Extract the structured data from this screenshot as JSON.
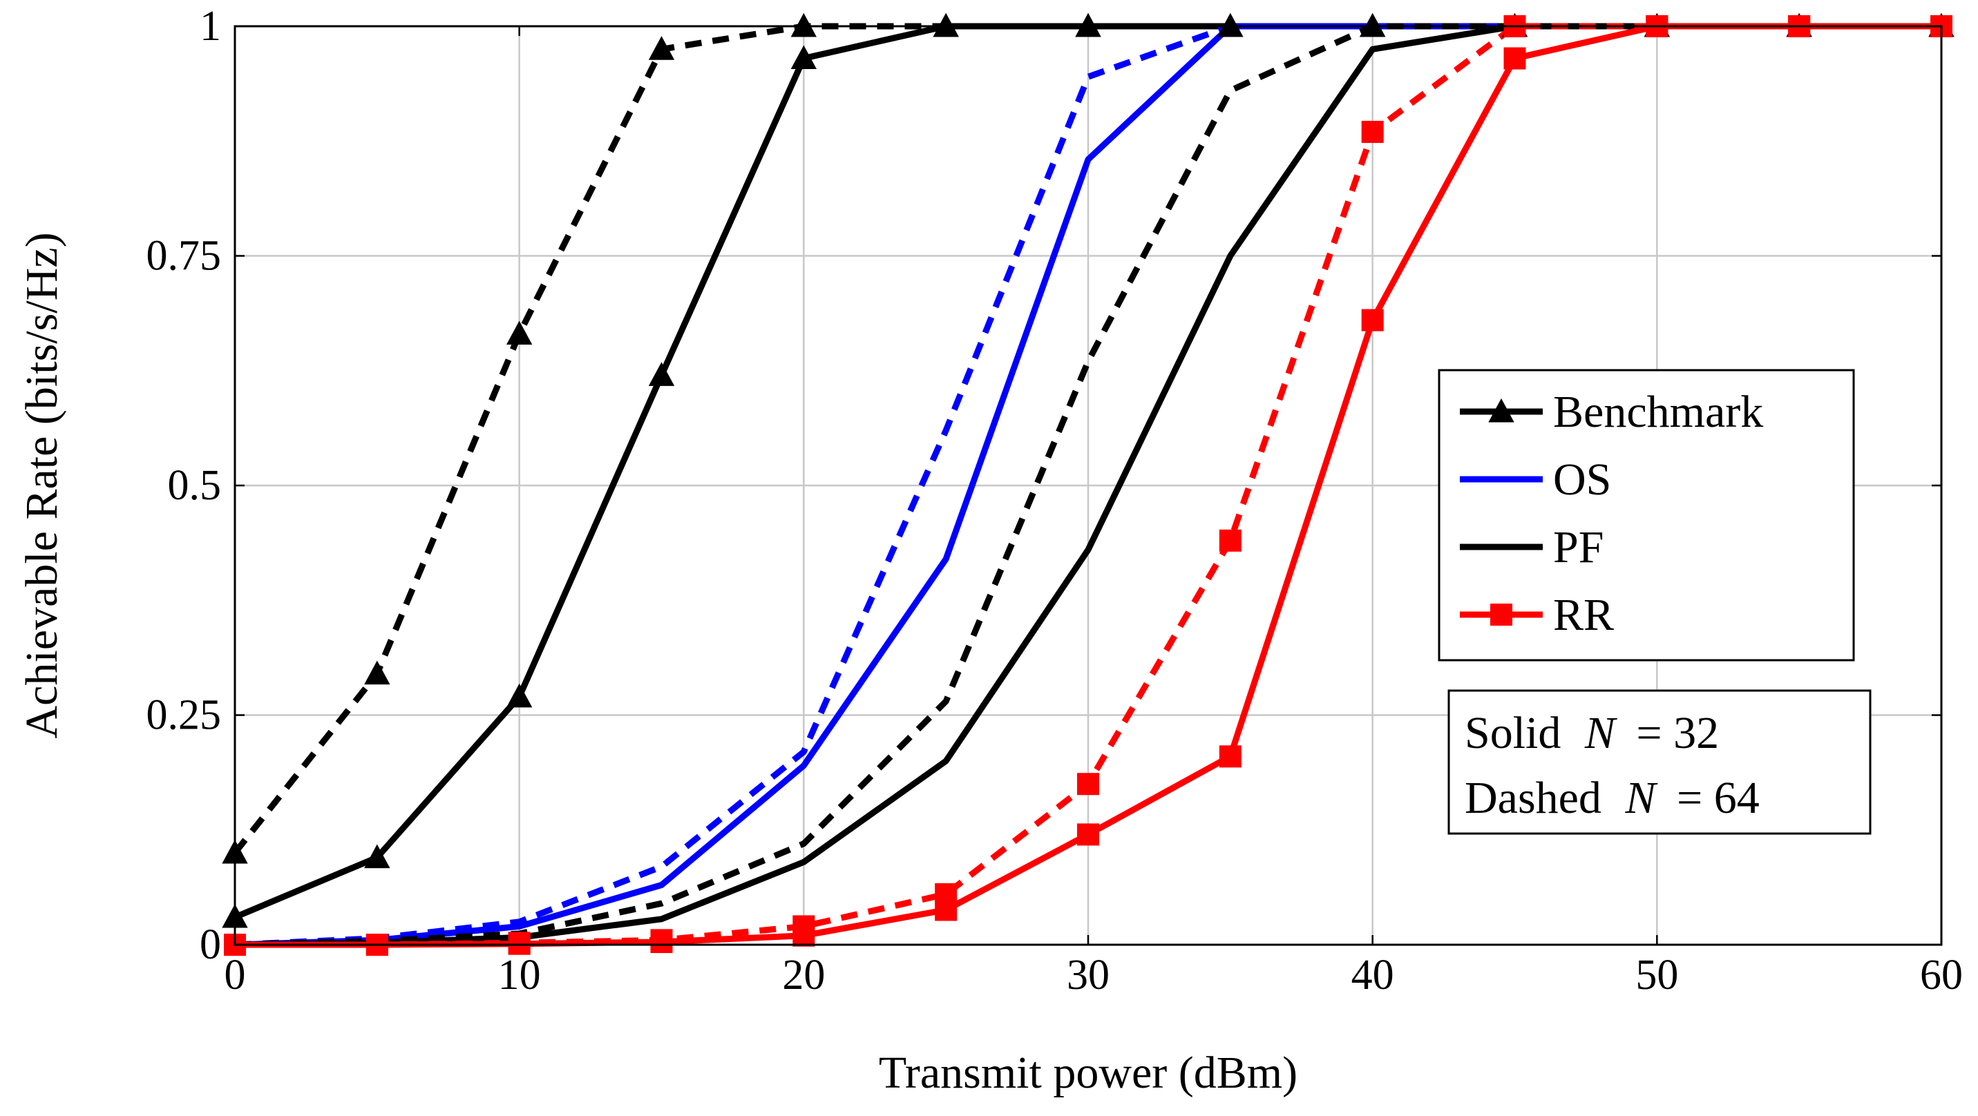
{
  "chart_data": {
    "type": "line",
    "xlabel": "Transmit power (dBm)",
    "ylabel": "Achievable Rate (bits/s/Hz)",
    "xlim": [
      0,
      60
    ],
    "ylim": [
      0,
      1
    ],
    "grid": true,
    "x_ticks": [
      "0",
      "10",
      "20",
      "30",
      "40",
      "50",
      "60"
    ],
    "y_ticks": [
      "0",
      "0.25",
      "0.5",
      "0.75",
      "1"
    ],
    "legend": {
      "position": "right",
      "entries": [
        {
          "label": "Benchmark",
          "color": "#000000",
          "marker": "triangle"
        },
        {
          "label": "OS",
          "color": "#0000ff",
          "marker": "none"
        },
        {
          "label": "PF",
          "color": "#000000",
          "marker": "none"
        },
        {
          "label": "RR",
          "color": "#ff0000",
          "marker": "square"
        }
      ]
    },
    "annotation": {
      "line1_prefix": "Solid",
      "line1_var": "N",
      "line1_value": "= 32",
      "line2_prefix": "Dashed",
      "line2_var": "N",
      "line2_value": "= 64"
    },
    "series": [
      {
        "name": "Benchmark",
        "N": 64,
        "style": "dashed",
        "color": "#000000",
        "marker": "triangle",
        "x": [
          0,
          5,
          10,
          15,
          20,
          25,
          30,
          35,
          40,
          45,
          50,
          55,
          60
        ],
        "y": [
          0.1,
          0.295,
          0.665,
          0.975,
          1.0,
          1.0,
          1.0,
          1.0,
          1.0,
          1.0,
          1.0,
          1.0,
          1.0
        ]
      },
      {
        "name": "Benchmark",
        "N": 32,
        "style": "solid",
        "color": "#000000",
        "marker": "triangle",
        "x": [
          0,
          5,
          10,
          15,
          20,
          25,
          30,
          35,
          40,
          45,
          50,
          55,
          60
        ],
        "y": [
          0.03,
          0.095,
          0.27,
          0.62,
          0.965,
          1.0,
          1.0,
          1.0,
          1.0,
          1.0,
          1.0,
          1.0,
          1.0
        ]
      },
      {
        "name": "OS",
        "N": 64,
        "style": "dashed",
        "color": "#0000ff",
        "marker": "none",
        "x": [
          0,
          5,
          10,
          15,
          20,
          25,
          30,
          35,
          40,
          45,
          50,
          55,
          60
        ],
        "y": [
          0.0,
          0.007,
          0.025,
          0.085,
          0.21,
          0.56,
          0.945,
          1.0,
          1.0,
          1.0,
          1.0,
          1.0,
          1.0
        ]
      },
      {
        "name": "OS",
        "N": 32,
        "style": "solid",
        "color": "#0000ff",
        "marker": "none",
        "x": [
          0,
          5,
          10,
          15,
          20,
          25,
          30,
          35,
          40,
          45,
          50,
          55,
          60
        ],
        "y": [
          0.0,
          0.005,
          0.02,
          0.065,
          0.195,
          0.42,
          0.855,
          1.0,
          1.0,
          1.0,
          1.0,
          1.0,
          1.0
        ]
      },
      {
        "name": "PF",
        "N": 64,
        "style": "dashed",
        "color": "#000000",
        "marker": "none",
        "x": [
          0,
          5,
          10,
          15,
          20,
          25,
          30,
          35,
          40,
          45,
          50,
          55,
          60
        ],
        "y": [
          0.0,
          0.004,
          0.012,
          0.045,
          0.11,
          0.265,
          0.635,
          0.93,
          1.0,
          1.0,
          1.0,
          1.0,
          1.0
        ]
      },
      {
        "name": "PF",
        "N": 32,
        "style": "solid",
        "color": "#000000",
        "marker": "none",
        "x": [
          0,
          5,
          10,
          15,
          20,
          25,
          30,
          35,
          40,
          45,
          50,
          55,
          60
        ],
        "y": [
          0.0,
          0.002,
          0.008,
          0.028,
          0.09,
          0.2,
          0.43,
          0.75,
          0.975,
          1.0,
          1.0,
          1.0,
          1.0
        ]
      },
      {
        "name": "RR",
        "N": 64,
        "style": "dashed",
        "color": "#ff0000",
        "marker": "square",
        "x": [
          0,
          5,
          10,
          15,
          20,
          25,
          30,
          35,
          40,
          45,
          50,
          55,
          60
        ],
        "y": [
          0.0,
          0.0,
          0.002,
          0.005,
          0.02,
          0.055,
          0.175,
          0.44,
          0.885,
          1.0,
          1.0,
          1.0,
          1.0
        ]
      },
      {
        "name": "RR",
        "N": 32,
        "style": "solid",
        "color": "#ff0000",
        "marker": "square",
        "x": [
          0,
          5,
          10,
          15,
          20,
          25,
          30,
          35,
          40,
          45,
          50,
          55,
          60
        ],
        "y": [
          0.0,
          0.0,
          0.001,
          0.003,
          0.01,
          0.038,
          0.12,
          0.205,
          0.68,
          0.965,
          1.0,
          1.0,
          1.0
        ]
      }
    ]
  }
}
